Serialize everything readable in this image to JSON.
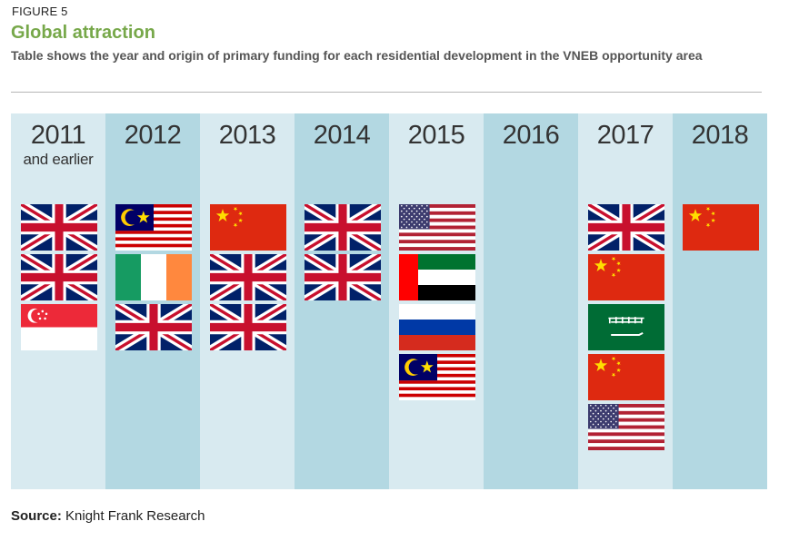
{
  "figure_label": "FIGURE 5",
  "title": "Global attraction",
  "subtitle": "Table shows the year and origin of primary funding for each residential development in the VNEB opportunity area",
  "source_label": "Source:",
  "source_text": "Knight Frank Research",
  "chart_data": {
    "type": "table",
    "columns": [
      {
        "year": "2011",
        "note": "and earlier",
        "flags": [
          "united-kingdom",
          "united-kingdom",
          "singapore"
        ]
      },
      {
        "year": "2012",
        "note": "",
        "flags": [
          "malaysia",
          "ireland",
          "united-kingdom"
        ]
      },
      {
        "year": "2013",
        "note": "",
        "flags": [
          "china",
          "united-kingdom",
          "united-kingdom"
        ]
      },
      {
        "year": "2014",
        "note": "",
        "flags": [
          "united-kingdom",
          "united-kingdom"
        ]
      },
      {
        "year": "2015",
        "note": "",
        "flags": [
          "united-states",
          "united-arab-emirates",
          "russia",
          "malaysia"
        ]
      },
      {
        "year": "2016",
        "note": "",
        "flags": []
      },
      {
        "year": "2017",
        "note": "",
        "flags": [
          "united-kingdom",
          "china",
          "saudi-arabia",
          "china",
          "united-states"
        ]
      },
      {
        "year": "2018",
        "note": "",
        "flags": [
          "china"
        ]
      }
    ],
    "colors": {
      "column_light": "#d8eaf0",
      "column_dark": "#b3d8e2",
      "title": "#77a84a"
    }
  }
}
